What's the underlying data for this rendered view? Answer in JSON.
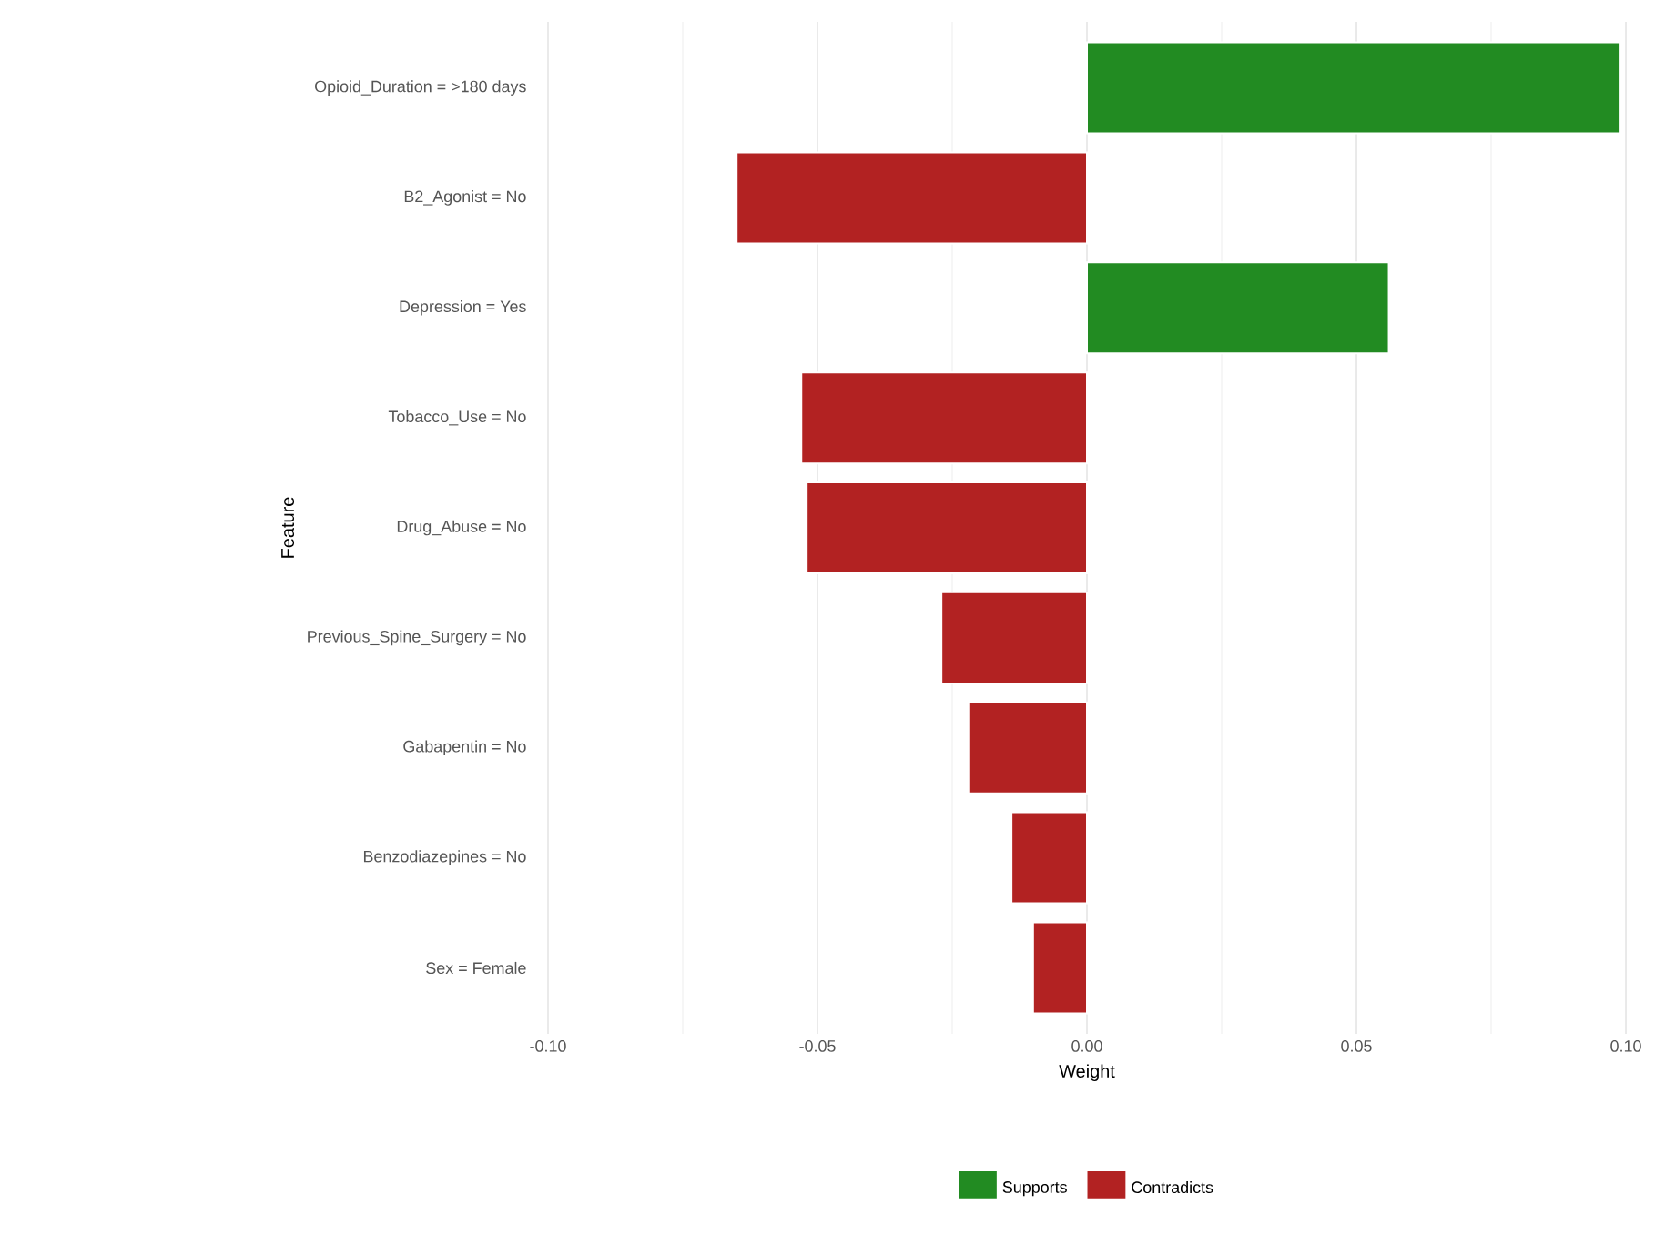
{
  "chart_data": {
    "type": "bar",
    "orientation": "horizontal",
    "xlabel": "Weight",
    "ylabel": "Feature",
    "categories": [
      "Opioid_Duration = >180 days",
      "B2_Agonist = No",
      "Depression = Yes",
      "Tobacco_Use = No",
      "Drug_Abuse = No",
      "Previous_Spine_Surgery = No",
      "Gabapentin = No",
      "Benzodiazepines = No",
      "Sex = Female"
    ],
    "series": [
      {
        "name": "Supports",
        "color": "#228b22",
        "values": [
          0.099,
          null,
          0.056,
          null,
          null,
          null,
          null,
          null,
          null
        ]
      },
      {
        "name": "Contradicts",
        "color": "#b22222",
        "values": [
          null,
          -0.065,
          null,
          -0.053,
          -0.052,
          -0.027,
          -0.022,
          -0.014,
          -0.01
        ]
      }
    ],
    "xlim": [
      -0.1,
      0.1
    ],
    "xticks": [
      {
        "value": -0.1,
        "label": "-0.10"
      },
      {
        "value": -0.05,
        "label": "-0.05"
      },
      {
        "value": 0,
        "label": "0.00"
      },
      {
        "value": 0.05,
        "label": "0.05"
      },
      {
        "value": 0.1,
        "label": "0.10"
      }
    ],
    "grid": "x",
    "legend": "bottom"
  }
}
